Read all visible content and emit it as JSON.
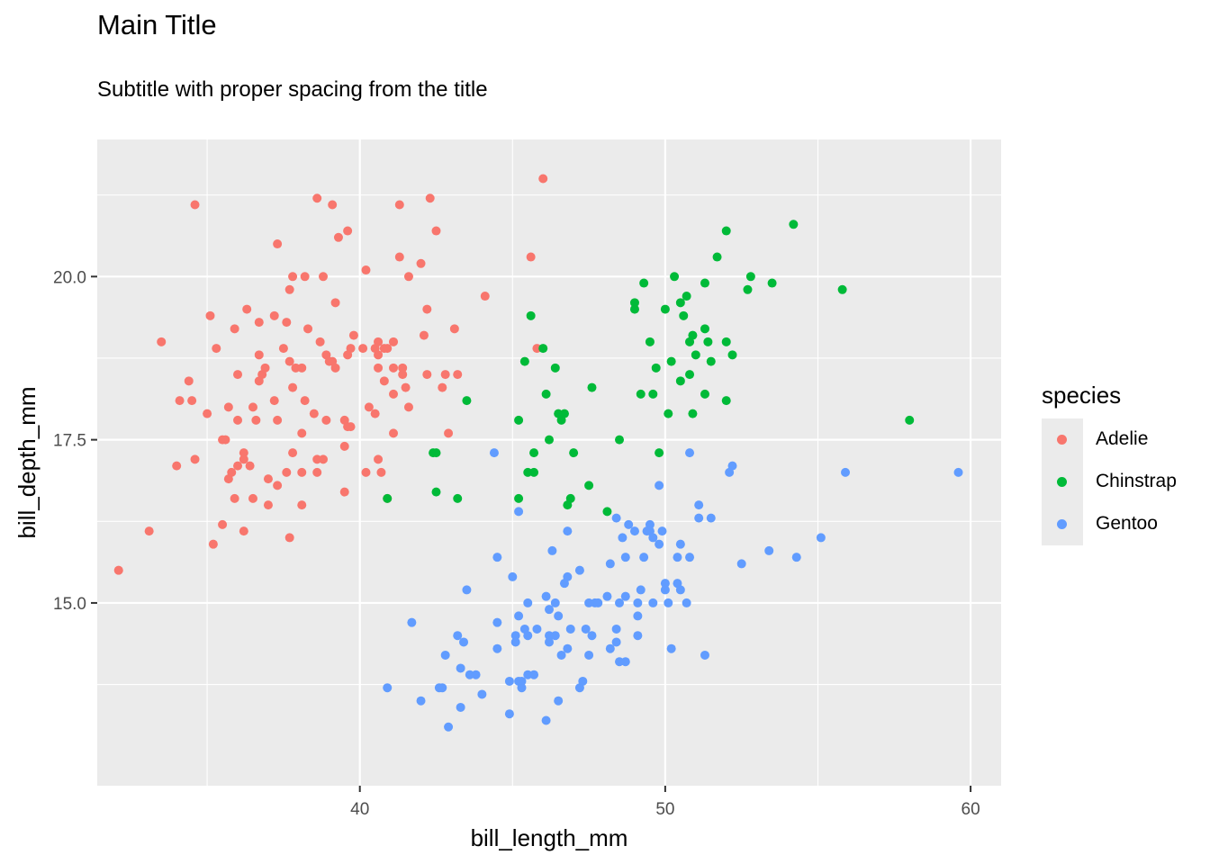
{
  "chart_data": {
    "type": "scatter",
    "title": "Main Title",
    "subtitle": "Subtitle with proper spacing from the title",
    "xlabel": "bill_length_mm",
    "ylabel": "bill_depth_mm",
    "xlim": [
      31.4,
      61.0
    ],
    "ylim": [
      12.2,
      22.1
    ],
    "xticks": [
      40,
      50,
      60
    ],
    "yticks": [
      15.0,
      17.5,
      20.0
    ],
    "ytick_labels": [
      "15.0",
      "17.5",
      "20.0"
    ],
    "grid": true,
    "legend_title": "species",
    "legend_position": "right",
    "series": [
      {
        "name": "Adelie",
        "color": "#F8766D",
        "points": [
          [
            32.1,
            15.5
          ],
          [
            33.1,
            16.1
          ],
          [
            33.5,
            19.0
          ],
          [
            34.0,
            17.1
          ],
          [
            34.1,
            18.1
          ],
          [
            34.4,
            18.4
          ],
          [
            34.5,
            18.1
          ],
          [
            34.6,
            21.1
          ],
          [
            34.6,
            17.2
          ],
          [
            35.0,
            17.9
          ],
          [
            35.1,
            19.4
          ],
          [
            35.2,
            15.9
          ],
          [
            35.3,
            18.9
          ],
          [
            35.5,
            16.2
          ],
          [
            35.5,
            17.5
          ],
          [
            35.6,
            17.5
          ],
          [
            35.7,
            18.0
          ],
          [
            35.7,
            16.9
          ],
          [
            35.8,
            17.0
          ],
          [
            35.9,
            16.6
          ],
          [
            35.9,
            19.2
          ],
          [
            36.0,
            17.1
          ],
          [
            36.0,
            17.8
          ],
          [
            36.0,
            18.5
          ],
          [
            36.2,
            16.1
          ],
          [
            36.2,
            17.3
          ],
          [
            36.2,
            17.2
          ],
          [
            36.3,
            19.5
          ],
          [
            36.4,
            17.1
          ],
          [
            36.5,
            16.6
          ],
          [
            36.5,
            18.0
          ],
          [
            36.6,
            17.8
          ],
          [
            36.7,
            19.3
          ],
          [
            36.7,
            18.8
          ],
          [
            36.7,
            18.4
          ],
          [
            36.8,
            18.5
          ],
          [
            36.9,
            18.6
          ],
          [
            37.0,
            16.9
          ],
          [
            37.0,
            16.5
          ],
          [
            37.2,
            19.4
          ],
          [
            37.2,
            18.1
          ],
          [
            37.3,
            17.8
          ],
          [
            37.3,
            16.8
          ],
          [
            37.3,
            20.5
          ],
          [
            37.5,
            18.9
          ],
          [
            37.6,
            19.3
          ],
          [
            37.6,
            17.0
          ],
          [
            37.7,
            18.7
          ],
          [
            37.7,
            16.0
          ],
          [
            37.7,
            19.8
          ],
          [
            37.8,
            17.3
          ],
          [
            37.8,
            18.3
          ],
          [
            37.8,
            20.0
          ],
          [
            37.9,
            18.6
          ],
          [
            38.1,
            18.6
          ],
          [
            38.1,
            16.5
          ],
          [
            38.1,
            17.6
          ],
          [
            38.1,
            17.0
          ],
          [
            38.2,
            20.0
          ],
          [
            38.2,
            18.1
          ],
          [
            38.3,
            19.2
          ],
          [
            38.5,
            17.9
          ],
          [
            38.6,
            21.2
          ],
          [
            38.6,
            17.2
          ],
          [
            38.6,
            17.0
          ],
          [
            38.7,
            19.0
          ],
          [
            38.8,
            17.2
          ],
          [
            38.8,
            20.0
          ],
          [
            38.9,
            18.8
          ],
          [
            38.9,
            17.8
          ],
          [
            39.0,
            18.7
          ],
          [
            39.1,
            18.7
          ],
          [
            39.1,
            21.1
          ],
          [
            39.2,
            19.6
          ],
          [
            39.2,
            18.6
          ],
          [
            39.3,
            20.6
          ],
          [
            39.5,
            17.4
          ],
          [
            39.5,
            16.7
          ],
          [
            39.5,
            17.8
          ],
          [
            39.6,
            18.8
          ],
          [
            39.6,
            17.7
          ],
          [
            39.6,
            20.7
          ],
          [
            39.7,
            18.9
          ],
          [
            39.7,
            17.7
          ],
          [
            39.8,
            19.1
          ],
          [
            40.1,
            18.9
          ],
          [
            40.2,
            17.0
          ],
          [
            40.2,
            20.1
          ],
          [
            40.3,
            18.0
          ],
          [
            40.5,
            17.9
          ],
          [
            40.5,
            18.9
          ],
          [
            40.6,
            18.8
          ],
          [
            40.6,
            19.0
          ],
          [
            40.6,
            18.6
          ],
          [
            40.6,
            17.2
          ],
          [
            40.7,
            17.0
          ],
          [
            40.8,
            18.4
          ],
          [
            40.8,
            18.9
          ],
          [
            40.9,
            16.6
          ],
          [
            40.9,
            18.9
          ],
          [
            41.1,
            18.2
          ],
          [
            41.1,
            17.6
          ],
          [
            41.1,
            19.0
          ],
          [
            41.1,
            18.6
          ],
          [
            41.3,
            20.3
          ],
          [
            41.3,
            21.1
          ],
          [
            41.4,
            18.6
          ],
          [
            41.4,
            18.5
          ],
          [
            41.5,
            18.3
          ],
          [
            41.6,
            18.0
          ],
          [
            41.6,
            20.0
          ],
          [
            42.0,
            20.2
          ],
          [
            42.1,
            19.1
          ],
          [
            42.2,
            18.5
          ],
          [
            42.2,
            19.5
          ],
          [
            42.3,
            21.2
          ],
          [
            42.5,
            20.7
          ],
          [
            42.7,
            18.3
          ],
          [
            42.8,
            18.5
          ],
          [
            42.9,
            17.6
          ],
          [
            43.1,
            19.2
          ],
          [
            43.2,
            18.5
          ],
          [
            44.1,
            19.7
          ],
          [
            45.6,
            20.3
          ],
          [
            45.8,
            18.9
          ],
          [
            46.0,
            21.5
          ]
        ]
      },
      {
        "name": "Chinstrap",
        "color": "#00BA38",
        "points": [
          [
            40.9,
            16.6
          ],
          [
            42.4,
            17.3
          ],
          [
            42.5,
            16.7
          ],
          [
            42.5,
            17.3
          ],
          [
            43.2,
            16.6
          ],
          [
            43.5,
            18.1
          ],
          [
            45.2,
            17.8
          ],
          [
            45.2,
            16.6
          ],
          [
            45.4,
            18.7
          ],
          [
            45.5,
            17.0
          ],
          [
            45.6,
            19.4
          ],
          [
            45.7,
            17.3
          ],
          [
            45.7,
            17.0
          ],
          [
            46.0,
            18.9
          ],
          [
            46.1,
            18.2
          ],
          [
            46.2,
            17.5
          ],
          [
            46.4,
            18.6
          ],
          [
            46.5,
            17.9
          ],
          [
            46.6,
            17.8
          ],
          [
            46.7,
            17.9
          ],
          [
            46.8,
            16.5
          ],
          [
            46.9,
            16.6
          ],
          [
            47.0,
            17.3
          ],
          [
            47.5,
            16.8
          ],
          [
            47.6,
            18.3
          ],
          [
            48.1,
            16.4
          ],
          [
            48.5,
            17.5
          ],
          [
            49.0,
            19.5
          ],
          [
            49.0,
            19.6
          ],
          [
            49.2,
            18.2
          ],
          [
            49.3,
            19.9
          ],
          [
            49.5,
            19.0
          ],
          [
            49.6,
            18.2
          ],
          [
            49.7,
            18.6
          ],
          [
            49.8,
            17.3
          ],
          [
            50.0,
            19.5
          ],
          [
            50.1,
            17.9
          ],
          [
            50.2,
            18.7
          ],
          [
            50.3,
            20.0
          ],
          [
            50.5,
            18.4
          ],
          [
            50.5,
            19.6
          ],
          [
            50.6,
            19.4
          ],
          [
            50.7,
            19.7
          ],
          [
            50.8,
            18.5
          ],
          [
            50.8,
            19.0
          ],
          [
            50.9,
            17.9
          ],
          [
            50.9,
            19.1
          ],
          [
            51.0,
            18.8
          ],
          [
            51.3,
            18.2
          ],
          [
            51.3,
            19.2
          ],
          [
            51.3,
            19.9
          ],
          [
            51.4,
            19.0
          ],
          [
            51.5,
            18.7
          ],
          [
            51.7,
            20.3
          ],
          [
            52.0,
            18.1
          ],
          [
            52.0,
            19.0
          ],
          [
            52.0,
            20.7
          ],
          [
            52.2,
            18.8
          ],
          [
            52.7,
            19.8
          ],
          [
            52.8,
            20.0
          ],
          [
            53.5,
            19.9
          ],
          [
            54.2,
            20.8
          ],
          [
            55.8,
            19.8
          ],
          [
            58.0,
            17.8
          ]
        ]
      },
      {
        "name": "Gentoo",
        "color": "#619CFF",
        "points": [
          [
            40.9,
            13.7
          ],
          [
            41.7,
            14.7
          ],
          [
            42.0,
            13.5
          ],
          [
            42.6,
            13.7
          ],
          [
            42.7,
            13.7
          ],
          [
            42.8,
            14.2
          ],
          [
            42.9,
            13.1
          ],
          [
            43.2,
            14.5
          ],
          [
            43.3,
            14.0
          ],
          [
            43.3,
            13.4
          ],
          [
            43.4,
            14.4
          ],
          [
            43.5,
            15.2
          ],
          [
            43.6,
            13.9
          ],
          [
            43.8,
            13.9
          ],
          [
            44.0,
            13.6
          ],
          [
            44.4,
            17.3
          ],
          [
            44.5,
            14.3
          ],
          [
            44.5,
            14.7
          ],
          [
            44.5,
            15.7
          ],
          [
            44.9,
            13.8
          ],
          [
            44.9,
            13.3
          ],
          [
            45.0,
            15.4
          ],
          [
            45.1,
            14.5
          ],
          [
            45.1,
            14.4
          ],
          [
            45.2,
            16.4
          ],
          [
            45.2,
            13.8
          ],
          [
            45.2,
            14.8
          ],
          [
            45.3,
            13.7
          ],
          [
            45.3,
            13.8
          ],
          [
            45.4,
            14.6
          ],
          [
            45.5,
            15.0
          ],
          [
            45.5,
            13.9
          ],
          [
            45.5,
            14.5
          ],
          [
            45.7,
            13.9
          ],
          [
            45.8,
            14.6
          ],
          [
            46.1,
            13.2
          ],
          [
            46.1,
            15.1
          ],
          [
            46.2,
            14.5
          ],
          [
            46.2,
            14.9
          ],
          [
            46.2,
            14.4
          ],
          [
            46.3,
            15.8
          ],
          [
            46.4,
            15.0
          ],
          [
            46.4,
            14.5
          ],
          [
            46.5,
            13.5
          ],
          [
            46.5,
            14.8
          ],
          [
            46.6,
            14.2
          ],
          [
            46.7,
            15.3
          ],
          [
            46.8,
            15.4
          ],
          [
            46.8,
            14.3
          ],
          [
            46.8,
            16.1
          ],
          [
            46.9,
            14.6
          ],
          [
            47.2,
            13.7
          ],
          [
            47.2,
            15.5
          ],
          [
            47.3,
            13.8
          ],
          [
            47.4,
            14.6
          ],
          [
            47.5,
            15.0
          ],
          [
            47.5,
            14.2
          ],
          [
            47.6,
            14.5
          ],
          [
            47.7,
            15.0
          ],
          [
            47.8,
            15.0
          ],
          [
            48.1,
            15.1
          ],
          [
            48.2,
            14.3
          ],
          [
            48.2,
            15.6
          ],
          [
            48.4,
            14.6
          ],
          [
            48.4,
            16.3
          ],
          [
            48.4,
            14.4
          ],
          [
            48.5,
            14.1
          ],
          [
            48.5,
            15.0
          ],
          [
            48.6,
            16.0
          ],
          [
            48.7,
            15.1
          ],
          [
            48.7,
            15.7
          ],
          [
            48.7,
            14.1
          ],
          [
            48.8,
            16.2
          ],
          [
            49.0,
            16.1
          ],
          [
            49.1,
            14.8
          ],
          [
            49.1,
            14.5
          ],
          [
            49.1,
            15.0
          ],
          [
            49.2,
            15.2
          ],
          [
            49.3,
            15.7
          ],
          [
            49.4,
            16.1
          ],
          [
            49.5,
            16.2
          ],
          [
            49.5,
            16.1
          ],
          [
            49.6,
            15.0
          ],
          [
            49.6,
            16.0
          ],
          [
            49.8,
            15.9
          ],
          [
            49.8,
            16.8
          ],
          [
            49.9,
            16.1
          ],
          [
            50.0,
            15.2
          ],
          [
            50.0,
            15.3
          ],
          [
            50.1,
            15.0
          ],
          [
            50.2,
            14.3
          ],
          [
            50.4,
            15.7
          ],
          [
            50.4,
            15.3
          ],
          [
            50.5,
            15.9
          ],
          [
            50.5,
            15.2
          ],
          [
            50.7,
            15.0
          ],
          [
            50.8,
            15.7
          ],
          [
            50.8,
            17.3
          ],
          [
            51.1,
            16.3
          ],
          [
            51.1,
            16.5
          ],
          [
            51.3,
            14.2
          ],
          [
            51.5,
            16.3
          ],
          [
            52.1,
            17.0
          ],
          [
            52.2,
            17.1
          ],
          [
            52.5,
            15.6
          ],
          [
            53.4,
            15.8
          ],
          [
            54.3,
            15.7
          ],
          [
            55.1,
            16.0
          ],
          [
            55.9,
            17.0
          ],
          [
            59.6,
            17.0
          ]
        ]
      }
    ]
  }
}
